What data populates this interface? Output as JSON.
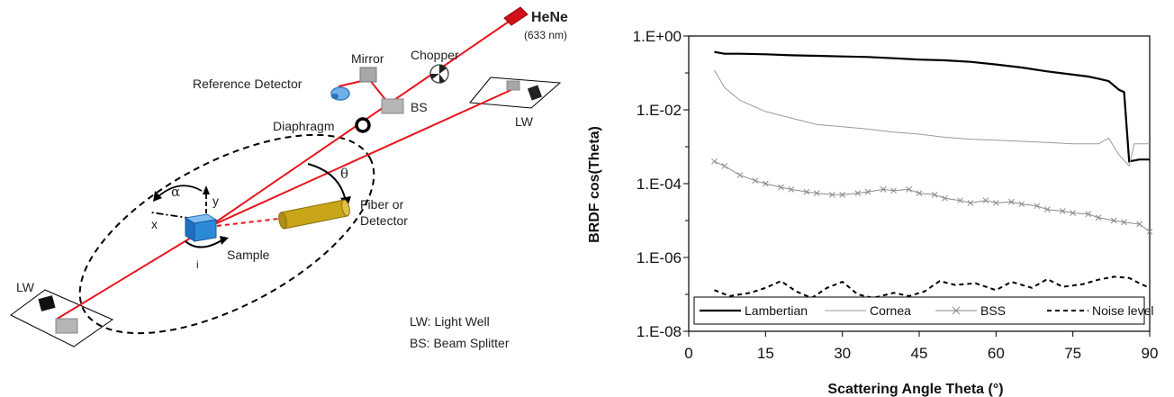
{
  "diagram": {
    "labels": {
      "hene": "HeNe",
      "hene_wavelength": "(633 nm)",
      "chopper": "Chopper",
      "mirror": "Mirror",
      "reference_detector": "Reference Detector",
      "bs": "BS",
      "diaphragm": "Diaphragm",
      "lw_top": "LW",
      "lw_bottom": "LW",
      "theta": "θ",
      "alpha": "α",
      "y_axis": "y",
      "x_axis": "x",
      "fiber": "Fiber or",
      "detector": "Detector",
      "sample": "Sample",
      "i_axis": "i",
      "legend_lw": "LW: Light Well",
      "legend_bs": "BS: Beam Splitter"
    },
    "colors": {
      "laser": "#e8141c",
      "sample": "#2a8ad8",
      "fiber": "#c9a51a",
      "component": "#a7a7a7"
    }
  },
  "chart_data": {
    "type": "line",
    "xlabel": "Scattering Angle Theta (°)",
    "ylabel": "BRDF cos(Theta)",
    "xlim": [
      0,
      90
    ],
    "ylim": [
      1e-08,
      1
    ],
    "yscale": "log",
    "x_ticks": [
      "0",
      "15",
      "30",
      "45",
      "60",
      "75",
      "90"
    ],
    "y_ticks": [
      "1.E-08",
      "1.E-06",
      "1.E-04",
      "1.E-02",
      "1.E+00"
    ],
    "legend_position": "bottom",
    "series": [
      {
        "name": "Lambertian",
        "color": "#000000",
        "style": "solid-thick",
        "points": [
          [
            5,
            0.37
          ],
          [
            7,
            0.33
          ],
          [
            10,
            0.33
          ],
          [
            15,
            0.32
          ],
          [
            20,
            0.3
          ],
          [
            25,
            0.29
          ],
          [
            30,
            0.28
          ],
          [
            35,
            0.27
          ],
          [
            40,
            0.25
          ],
          [
            45,
            0.23
          ],
          [
            50,
            0.22
          ],
          [
            55,
            0.2
          ],
          [
            60,
            0.17
          ],
          [
            65,
            0.14
          ],
          [
            70,
            0.11
          ],
          [
            75,
            0.09
          ],
          [
            78,
            0.08
          ],
          [
            80,
            0.07
          ],
          [
            82,
            0.06
          ],
          [
            84,
            0.035
          ],
          [
            85,
            0.03
          ],
          [
            86,
            0.0004
          ],
          [
            88,
            0.00045
          ],
          [
            90,
            0.00045
          ]
        ]
      },
      {
        "name": "Cornea",
        "color": "#9a9a9a",
        "style": "solid-thin",
        "points": [
          [
            5,
            0.12
          ],
          [
            7,
            0.04
          ],
          [
            10,
            0.018
          ],
          [
            15,
            0.009
          ],
          [
            20,
            0.006
          ],
          [
            25,
            0.004
          ],
          [
            30,
            0.0035
          ],
          [
            35,
            0.003
          ],
          [
            40,
            0.0025
          ],
          [
            45,
            0.0022
          ],
          [
            50,
            0.0018
          ],
          [
            55,
            0.0016
          ],
          [
            60,
            0.0015
          ],
          [
            65,
            0.0014
          ],
          [
            70,
            0.0013
          ],
          [
            75,
            0.0012
          ],
          [
            80,
            0.0012
          ],
          [
            82,
            0.0017
          ],
          [
            84,
            0.0006
          ],
          [
            86,
            0.0003
          ],
          [
            87,
            0.0012
          ],
          [
            90,
            0.0012
          ]
        ]
      },
      {
        "name": "BSS",
        "color": "#8a8a8a",
        "style": "x-markers",
        "points": [
          [
            5,
            0.0004
          ],
          [
            7,
            0.0003
          ],
          [
            10,
            0.00017
          ],
          [
            13,
            0.00012
          ],
          [
            15,
            0.0001
          ],
          [
            18,
            8e-05
          ],
          [
            20,
            7e-05
          ],
          [
            23,
            6e-05
          ],
          [
            25,
            5.5e-05
          ],
          [
            28,
            5e-05
          ],
          [
            30,
            5e-05
          ],
          [
            33,
            5.5e-05
          ],
          [
            35,
            6e-05
          ],
          [
            38,
            7e-05
          ],
          [
            40,
            6.5e-05
          ],
          [
            43,
            7e-05
          ],
          [
            45,
            5.5e-05
          ],
          [
            48,
            5e-05
          ],
          [
            50,
            4e-05
          ],
          [
            53,
            3.5e-05
          ],
          [
            55,
            3e-05
          ],
          [
            58,
            3.5e-05
          ],
          [
            60,
            3e-05
          ],
          [
            63,
            3.2e-05
          ],
          [
            65,
            2.8e-05
          ],
          [
            68,
            2.5e-05
          ],
          [
            70,
            2e-05
          ],
          [
            73,
            1.8e-05
          ],
          [
            75,
            1.6e-05
          ],
          [
            78,
            1.5e-05
          ],
          [
            80,
            1.2e-05
          ],
          [
            83,
            1e-05
          ],
          [
            85,
            9e-06
          ],
          [
            88,
            8e-06
          ],
          [
            90,
            5e-06
          ]
        ]
      },
      {
        "name": "Noise level",
        "color": "#000000",
        "style": "dashed",
        "points": [
          [
            5,
            1.3e-07
          ],
          [
            8,
            9e-08
          ],
          [
            12,
            1.1e-07
          ],
          [
            15,
            1.5e-07
          ],
          [
            18,
            2.3e-07
          ],
          [
            21,
            1.2e-07
          ],
          [
            24,
            8e-08
          ],
          [
            27,
            1.5e-07
          ],
          [
            30,
            2.2e-07
          ],
          [
            33,
            1e-07
          ],
          [
            36,
            8e-08
          ],
          [
            40,
            1.1e-07
          ],
          [
            43,
            9e-08
          ],
          [
            46,
            1.2e-07
          ],
          [
            49,
            2.3e-07
          ],
          [
            52,
            1.8e-07
          ],
          [
            56,
            2e-07
          ],
          [
            60,
            1.3e-07
          ],
          [
            63,
            2.2e-07
          ],
          [
            67,
            1.5e-07
          ],
          [
            70,
            2.6e-07
          ],
          [
            73,
            1.6e-07
          ],
          [
            77,
            1.9e-07
          ],
          [
            80,
            2.5e-07
          ],
          [
            83,
            3e-07
          ],
          [
            86,
            2.8e-07
          ],
          [
            88,
            2e-07
          ],
          [
            90,
            1.5e-07
          ]
        ]
      }
    ]
  }
}
